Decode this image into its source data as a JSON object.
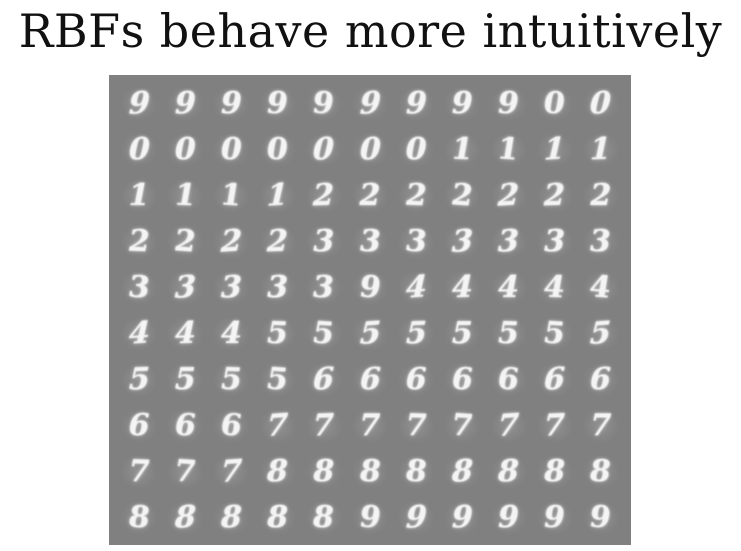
{
  "title": "RBFs behave more intuitively",
  "figure": {
    "columns": 11,
    "rows": [
      [
        "9",
        "9",
        "9",
        "9",
        "9",
        "9",
        "9",
        "9",
        "9",
        "0",
        "0"
      ],
      [
        "0",
        "0",
        "0",
        "0",
        "0",
        "0",
        "0",
        "1",
        "1",
        "1",
        "1"
      ],
      [
        "1",
        "1",
        "1",
        "1",
        "2",
        "2",
        "2",
        "2",
        "2",
        "2",
        "2"
      ],
      [
        "2",
        "2",
        "2",
        "2",
        "3",
        "3",
        "3",
        "3",
        "3",
        "3",
        "3"
      ],
      [
        "3",
        "3",
        "3",
        "3",
        "3",
        "9",
        "4",
        "4",
        "4",
        "4",
        "4"
      ],
      [
        "4",
        "4",
        "4",
        "5",
        "5",
        "5",
        "5",
        "5",
        "5",
        "5",
        "5"
      ],
      [
        "5",
        "5",
        "5",
        "5",
        "6",
        "6",
        "6",
        "6",
        "6",
        "6",
        "6"
      ],
      [
        "6",
        "6",
        "6",
        "7",
        "7",
        "7",
        "7",
        "7",
        "7",
        "7",
        "7"
      ],
      [
        "7",
        "7",
        "7",
        "8",
        "8",
        "8",
        "8",
        "8",
        "8",
        "8",
        "8"
      ],
      [
        "8",
        "8",
        "8",
        "8",
        "8",
        "9",
        "9",
        "9",
        "9",
        "9",
        "9"
      ]
    ]
  }
}
